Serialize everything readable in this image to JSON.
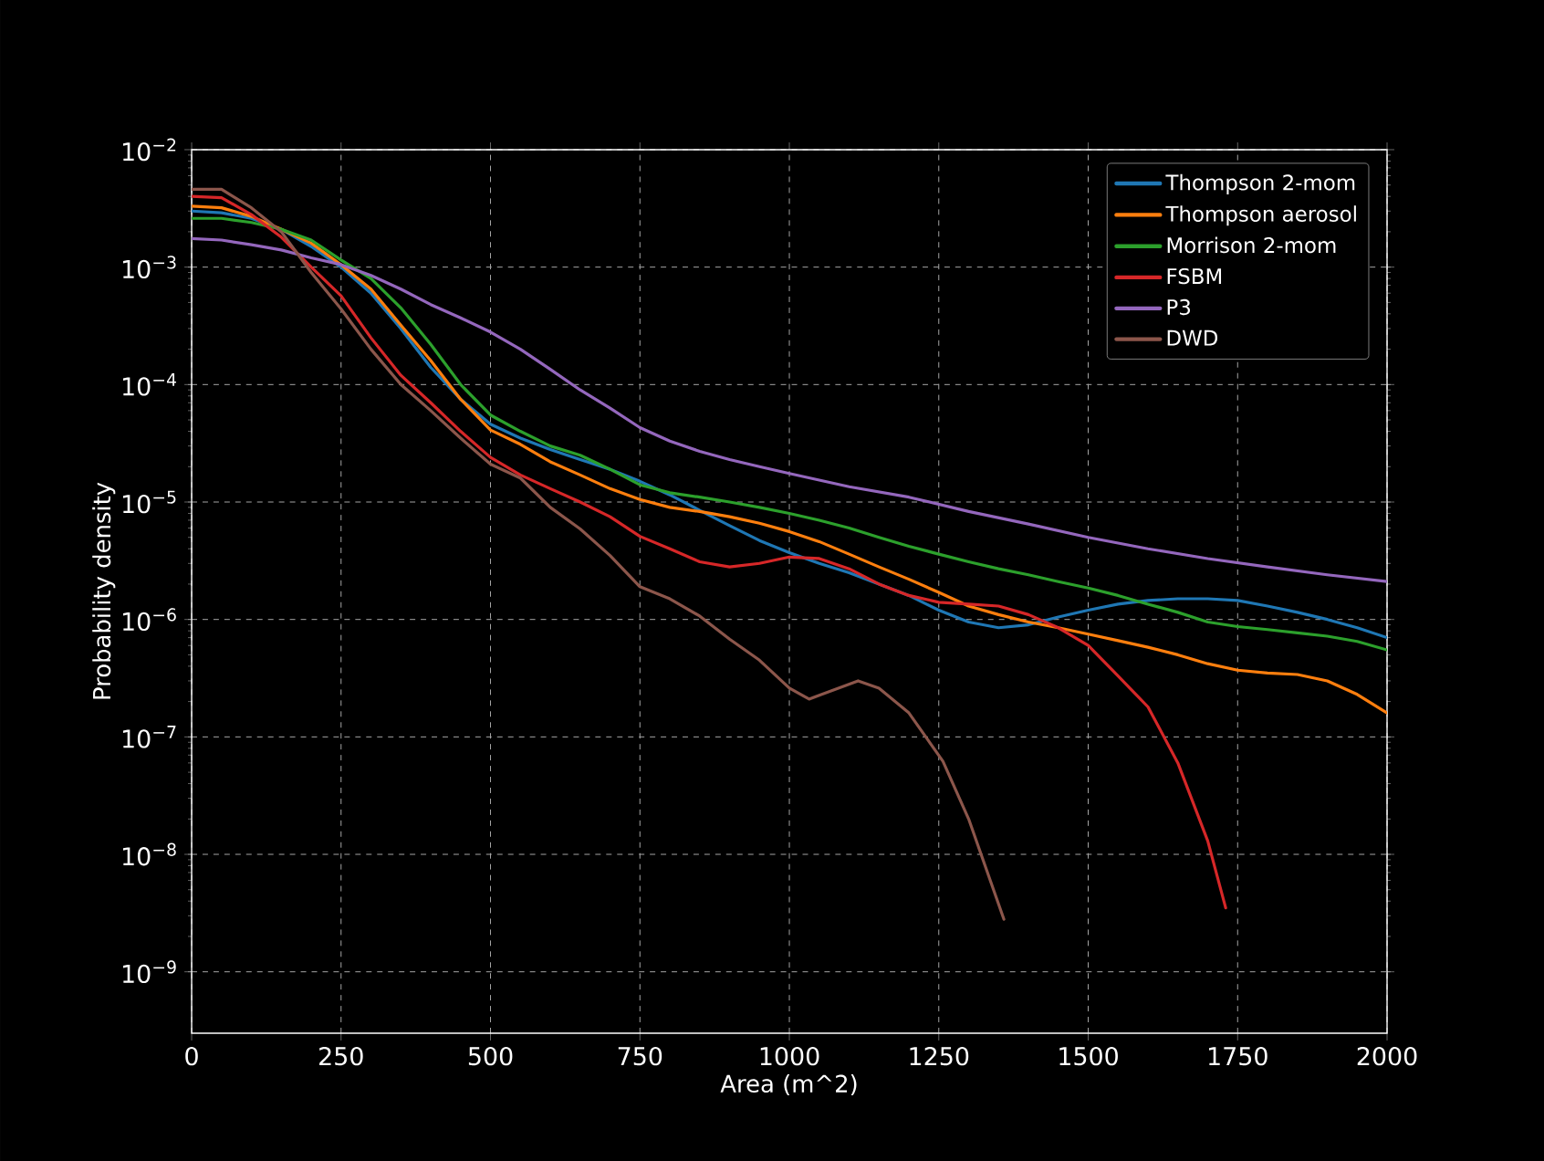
{
  "chart_data": {
    "type": "line",
    "xlabel": "Area (m^2)",
    "ylabel": "Probability density",
    "log": "y",
    "grid": true,
    "legend": "top right",
    "line_style": "solid",
    "xlim": [
      0,
      2000
    ],
    "xticks": [
      0,
      250,
      500,
      750,
      1000,
      1250,
      1500,
      1750,
      2000
    ],
    "ylim": [
      3e-10,
      0.01
    ],
    "yticks": [
      {
        "value": 1e-09,
        "label": "10$^{−9}$"
      },
      {
        "value": 1e-08,
        "label": "10$^{−8}$"
      },
      {
        "value": 1e-07,
        "label": "10$^{−7}$"
      },
      {
        "value": 1e-06,
        "label": "10$^{−6}$"
      },
      {
        "value": 1e-05,
        "label": "10$^{−5}$"
      },
      {
        "value": 0.0001,
        "label": "10$^{−4}$"
      },
      {
        "value": 0.001,
        "label": "10$^{−3}$"
      },
      {
        "value": 0.01,
        "label": "10$^{−2}$"
      }
    ],
    "series": [
      {
        "name": "Thompson 2-mom",
        "color": "#1f77b4",
        "x": [
          0,
          50,
          100,
          150,
          200,
          250,
          300,
          350,
          400,
          450,
          500,
          550,
          600,
          650,
          700,
          750,
          800,
          850,
          900,
          950,
          1000,
          1050,
          1100,
          1150,
          1200,
          1250,
          1300,
          1350,
          1400,
          1450,
          1500,
          1550,
          1600,
          1650,
          1700,
          1750,
          1800,
          1850,
          1900,
          1950,
          2000
        ],
        "values": [
          0.003,
          0.0029,
          0.0026,
          0.0021,
          0.0015,
          0.001,
          0.0006,
          0.0003,
          0.00014,
          7.5e-05,
          4.6e-05,
          3.5e-05,
          2.8e-05,
          2.3e-05,
          1.9e-05,
          1.5e-05,
          1.15e-05,
          8.5e-06,
          6.3e-06,
          4.7e-06,
          3.7e-06,
          3e-06,
          2.5e-06,
          2e-06,
          1.6e-06,
          1.2e-06,
          9.5e-07,
          8.5e-07,
          9e-07,
          1.05e-06,
          1.2e-06,
          1.35e-06,
          1.45e-06,
          1.5e-06,
          1.5e-06,
          1.45e-06,
          1.3e-06,
          1.15e-06,
          1e-06,
          8.5e-07,
          7e-07
        ]
      },
      {
        "name": "Thompson aerosol",
        "color": "#ff7f0e",
        "x": [
          0,
          50,
          100,
          150,
          200,
          250,
          300,
          350,
          400,
          450,
          500,
          550,
          600,
          650,
          700,
          750,
          800,
          850,
          900,
          950,
          1000,
          1050,
          1100,
          1150,
          1200,
          1250,
          1300,
          1350,
          1400,
          1450,
          1500,
          1550,
          1600,
          1650,
          1700,
          1750,
          1800,
          1850,
          1900,
          1950,
          2000
        ],
        "values": [
          0.0033,
          0.0032,
          0.0027,
          0.0021,
          0.0016,
          0.00105,
          0.00065,
          0.00032,
          0.00016,
          7.5e-05,
          4.1e-05,
          3.1e-05,
          2.2e-05,
          1.7e-05,
          1.3e-05,
          1.05e-05,
          9e-06,
          8.3e-06,
          7.5e-06,
          6.6e-06,
          5.6e-06,
          4.6e-06,
          3.6e-06,
          2.8e-06,
          2.2e-06,
          1.7e-06,
          1.3e-06,
          1.1e-06,
          9.5e-07,
          8.5e-07,
          7.5e-07,
          6.6e-07,
          5.8e-07,
          5e-07,
          4.2e-07,
          3.7e-07,
          3.5e-07,
          3.4e-07,
          3e-07,
          2.3e-07,
          1.6e-07
        ]
      },
      {
        "name": "Morrison 2-mom",
        "color": "#2ca02c",
        "x": [
          0,
          50,
          100,
          150,
          200,
          250,
          300,
          350,
          400,
          450,
          500,
          550,
          600,
          650,
          700,
          750,
          800,
          850,
          900,
          950,
          1000,
          1050,
          1100,
          1150,
          1200,
          1250,
          1300,
          1350,
          1400,
          1450,
          1500,
          1550,
          1600,
          1650,
          1700,
          1750,
          1800,
          1850,
          1900,
          1950,
          2000
        ],
        "values": [
          0.0026,
          0.0026,
          0.0024,
          0.0021,
          0.0017,
          0.00115,
          0.0008,
          0.00045,
          0.00022,
          0.0001,
          5.5e-05,
          4e-05,
          3e-05,
          2.5e-05,
          1.9e-05,
          1.4e-05,
          1.2e-05,
          1.1e-05,
          1e-05,
          9e-06,
          8e-06,
          7e-06,
          6e-06,
          5e-06,
          4.2e-06,
          3.6e-06,
          3.1e-06,
          2.7e-06,
          2.4e-06,
          2.1e-06,
          1.85e-06,
          1.6e-06,
          1.35e-06,
          1.15e-06,
          9.5e-07,
          8.7e-07,
          8.2e-07,
          7.7e-07,
          7.2e-07,
          6.5e-07,
          5.5e-07
        ]
      },
      {
        "name": "FSBM",
        "color": "#d62728",
        "x": [
          0,
          50,
          100,
          150,
          200,
          250,
          300,
          350,
          400,
          450,
          500,
          550,
          600,
          650,
          700,
          750,
          800,
          850,
          900,
          950,
          1000,
          1050,
          1100,
          1150,
          1200,
          1250,
          1300,
          1350,
          1400,
          1450,
          1500,
          1550,
          1600,
          1650,
          1700,
          1730
        ],
        "values": [
          0.004,
          0.0039,
          0.0028,
          0.0018,
          0.001,
          0.00057,
          0.00025,
          0.00012,
          7e-05,
          4e-05,
          2.4e-05,
          1.7e-05,
          1.3e-05,
          1e-05,
          7.5e-06,
          5.1e-06,
          4e-06,
          3.1e-06,
          2.8e-06,
          3e-06,
          3.4e-06,
          3.3e-06,
          2.7e-06,
          2e-06,
          1.6e-06,
          1.4e-06,
          1.35e-06,
          1.3e-06,
          1.1e-06,
          8.5e-07,
          6e-07,
          3.3e-07,
          1.8e-07,
          6e-08,
          1.3e-08,
          3.5e-09
        ]
      },
      {
        "name": "P3",
        "color": "#9467bd",
        "x": [
          0,
          50,
          100,
          150,
          200,
          250,
          300,
          350,
          400,
          450,
          500,
          550,
          600,
          650,
          700,
          750,
          800,
          850,
          900,
          950,
          1000,
          1100,
          1200,
          1300,
          1400,
          1500,
          1600,
          1700,
          1800,
          1900,
          2000
        ],
        "values": [
          0.00175,
          0.0017,
          0.00155,
          0.0014,
          0.0012,
          0.00105,
          0.00085,
          0.00065,
          0.00048,
          0.00037,
          0.00028,
          0.0002,
          0.000135,
          9e-05,
          6.3e-05,
          4.3e-05,
          3.3e-05,
          2.7e-05,
          2.3e-05,
          2e-05,
          1.75e-05,
          1.35e-05,
          1.1e-05,
          8.3e-06,
          6.5e-06,
          5e-06,
          4e-06,
          3.3e-06,
          2.8e-06,
          2.4e-06,
          2.1e-06
        ]
      },
      {
        "name": "DWD",
        "color": "#8c564b",
        "x": [
          0,
          50,
          100,
          150,
          200,
          250,
          300,
          350,
          400,
          450,
          500,
          550,
          600,
          650,
          700,
          750,
          800,
          850,
          900,
          950,
          1000,
          1033,
          1115,
          1150,
          1200,
          1257,
          1300,
          1359
        ],
        "values": [
          0.0046,
          0.0046,
          0.0032,
          0.002,
          0.0009,
          0.00044,
          0.0002,
          0.0001,
          6e-05,
          3.5e-05,
          2.1e-05,
          1.6e-05,
          9e-06,
          5.9e-06,
          3.5e-06,
          1.9e-06,
          1.5e-06,
          1.07e-06,
          6.8e-07,
          4.5e-07,
          2.6e-07,
          2.1e-07,
          3e-07,
          2.6e-07,
          1.6e-07,
          6.2e-08,
          2e-08,
          2.8e-09
        ]
      }
    ]
  }
}
